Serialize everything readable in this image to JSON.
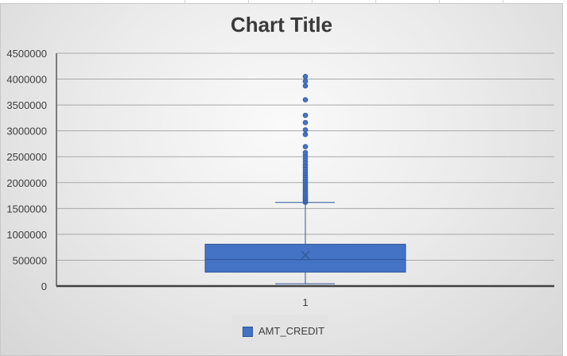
{
  "chart_data": {
    "type": "boxplot",
    "title": "Chart Title",
    "categories": [
      "1"
    ],
    "series": [
      {
        "name": "AMT_CREDIT",
        "color": "#4472c4",
        "min": 45000,
        "q1": 270000,
        "median": 513000,
        "q3": 808650,
        "max": 1616625,
        "mean": 599026,
        "outliers": [
          1620000,
          1645000,
          1665000,
          1690000,
          1715000,
          1740000,
          1770000,
          1800000,
          1830000,
          1865000,
          1900000,
          1935000,
          1970000,
          2010000,
          2050000,
          2095000,
          2140000,
          2185000,
          2235000,
          2285000,
          2340000,
          2400000,
          2460000,
          2520000,
          2580000,
          2695000,
          2930000,
          3020000,
          3160000,
          3300000,
          3600000,
          3870000,
          3960000,
          4050000
        ]
      }
    ],
    "yticks": [
      "4500000",
      "4000000",
      "3500000",
      "3000000",
      "2500000",
      "2000000",
      "1500000",
      "1000000",
      "500000",
      "0"
    ],
    "ylim": [
      0,
      4500000
    ],
    "grid": true,
    "legend_position": "bottom"
  }
}
